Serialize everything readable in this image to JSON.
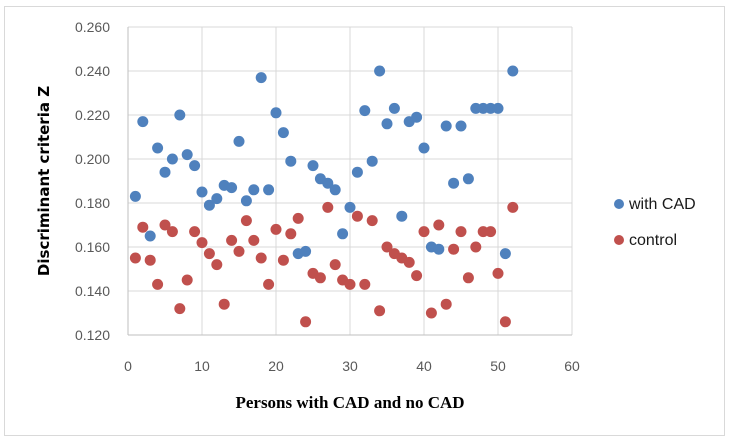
{
  "chart_data": {
    "type": "scatter",
    "title": "",
    "xlabel": "Persons with CAD and no CAD",
    "ylabel": "Discriminant criteria Z",
    "xlim": [
      0,
      60
    ],
    "ylim": [
      0.12,
      0.26
    ],
    "x_ticks": [
      0,
      10,
      20,
      30,
      40,
      50,
      60
    ],
    "x_tick_labels": [
      "0",
      "10",
      "20",
      "30",
      "40",
      "50",
      "60"
    ],
    "y_ticks": [
      0.12,
      0.14,
      0.16,
      0.18,
      0.2,
      0.22,
      0.24,
      0.26
    ],
    "y_tick_labels": [
      "0.120",
      "0.140",
      "0.160",
      "0.180",
      "0.200",
      "0.220",
      "0.240",
      "0.260"
    ],
    "grid": true,
    "legend_position": "right",
    "series": [
      {
        "name": "with CAD",
        "color": "#4f81bd",
        "x": [
          1,
          2,
          3,
          4,
          5,
          6,
          7,
          8,
          9,
          10,
          11,
          12,
          13,
          14,
          15,
          16,
          17,
          18,
          19,
          20,
          21,
          22,
          23,
          24,
          25,
          26,
          27,
          28,
          29,
          30,
          31,
          32,
          33,
          34,
          35,
          36,
          37,
          38,
          39,
          40,
          41,
          42,
          43,
          44,
          45,
          46,
          47,
          48,
          49,
          50,
          51,
          52
        ],
        "y": [
          0.183,
          0.217,
          0.165,
          0.205,
          0.194,
          0.2,
          0.22,
          0.202,
          0.197,
          0.185,
          0.179,
          0.182,
          0.188,
          0.187,
          0.208,
          0.181,
          0.186,
          0.237,
          0.186,
          0.221,
          0.212,
          0.199,
          0.157,
          0.158,
          0.197,
          0.191,
          0.189,
          0.186,
          0.166,
          0.178,
          0.194,
          0.222,
          0.199,
          0.24,
          0.216,
          0.223,
          0.174,
          0.217,
          0.219,
          0.205,
          0.16,
          0.159,
          0.215,
          0.189,
          0.215,
          0.191,
          0.223,
          0.223,
          0.223,
          0.223,
          0.157,
          0.24
        ]
      },
      {
        "name": "control",
        "color": "#c0504d",
        "x": [
          1,
          2,
          3,
          4,
          5,
          6,
          7,
          8,
          9,
          10,
          11,
          12,
          13,
          14,
          15,
          16,
          17,
          18,
          19,
          20,
          21,
          22,
          23,
          24,
          25,
          26,
          27,
          28,
          29,
          30,
          31,
          32,
          33,
          34,
          35,
          36,
          37,
          38,
          39,
          40,
          41,
          42,
          43,
          44,
          45,
          46,
          47,
          48,
          49,
          50,
          51,
          52
        ],
        "y": [
          0.155,
          0.169,
          0.154,
          0.143,
          0.17,
          0.167,
          0.132,
          0.145,
          0.167,
          0.162,
          0.157,
          0.152,
          0.134,
          0.163,
          0.158,
          0.172,
          0.163,
          0.155,
          0.143,
          0.168,
          0.154,
          0.166,
          0.173,
          0.126,
          0.148,
          0.146,
          0.178,
          0.152,
          0.145,
          0.143,
          0.174,
          0.143,
          0.172,
          0.131,
          0.16,
          0.157,
          0.155,
          0.153,
          0.147,
          0.167,
          0.13,
          0.17,
          0.134,
          0.159,
          0.167,
          0.146,
          0.16,
          0.167,
          0.167,
          0.148,
          0.126,
          0.178
        ]
      }
    ]
  }
}
